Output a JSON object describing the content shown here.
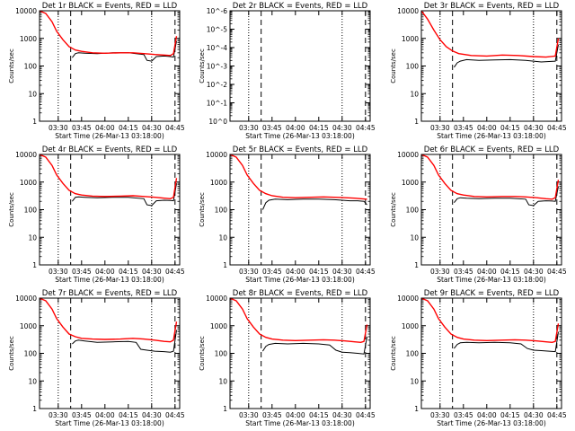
{
  "colors": {
    "events": "#000000",
    "lld": "#ff0000",
    "background": "#ffffff"
  },
  "chart_data": [
    {
      "type": "line",
      "title": "Det 1r BLACK = Events, RED = LLD",
      "xlabel": "Start Time (26-Mar-13 03:18:00)",
      "ylabel": "Counts/sec",
      "y_scale": "log",
      "ylim": [
        1,
        10000
      ],
      "y_ticks": [
        "1",
        "10",
        "100",
        "1000",
        "10000"
      ],
      "x_ticks": [
        "03:30",
        "03:45",
        "04:00",
        "04:15",
        "04:30",
        "04:45"
      ],
      "dotted_lines": [
        "03:30",
        "04:30"
      ],
      "dashed_lines": [
        "03:38",
        "04:45"
      ],
      "legend": "none",
      "series": [
        {
          "name": "Events",
          "color": "#000000",
          "x": [
            "03:39",
            "03:41",
            "03:43",
            "03:47",
            "03:55",
            "04:05",
            "04:15",
            "04:25",
            "04:27",
            "04:30",
            "04:33",
            "04:38",
            "04:42",
            "04:44",
            "04:46"
          ],
          "y": [
            200,
            280,
            300,
            290,
            280,
            300,
            300,
            260,
            160,
            150,
            220,
            230,
            220,
            210,
            800
          ]
        },
        {
          "name": "LLD",
          "color": "#ff0000",
          "x": [
            "03:18",
            "03:22",
            "03:26",
            "03:29",
            "03:33",
            "03:37",
            "03:41",
            "03:45",
            "03:52",
            "04:00",
            "04:10",
            "04:18",
            "04:25",
            "04:32",
            "04:38",
            "04:42",
            "04:44",
            "04:46"
          ],
          "y": [
            10000,
            8000,
            4000,
            1800,
            900,
            500,
            380,
            340,
            300,
            290,
            300,
            300,
            280,
            260,
            250,
            240,
            280,
            1200
          ]
        }
      ]
    },
    {
      "type": "line",
      "title": "Det 2r BLACK = Events, RED = LLD",
      "xlabel": "Start Time (26-Mar-13 03:18:00)",
      "ylabel": "Counts/sec",
      "y_scale": "log",
      "ylim": [
        1,
        1e-06
      ],
      "y_ticks": [
        "10^0",
        "10^-1",
        "10^-2",
        "10^-3",
        "10^-4",
        "10^-5",
        "10^-6"
      ],
      "x_ticks": [
        "03:30",
        "03:45",
        "04:00",
        "04:15",
        "04:30",
        "04:45"
      ],
      "dotted_lines": [
        "03:30",
        "04:30"
      ],
      "dashed_lines": [
        "03:38",
        "04:45"
      ],
      "legend": "none",
      "series": [
        {
          "name": "Events",
          "color": "#000000",
          "x": [],
          "y": []
        },
        {
          "name": "LLD",
          "color": "#ff0000",
          "x": [],
          "y": []
        }
      ]
    },
    {
      "type": "line",
      "title": "Det 3r BLACK = Events, RED = LLD",
      "xlabel": "Start Time (26-Mar-13 03:18:00)",
      "ylabel": "Counts/sec",
      "y_scale": "log",
      "ylim": [
        1,
        10000
      ],
      "y_ticks": [
        "1",
        "10",
        "100",
        "1000",
        "10000"
      ],
      "x_ticks": [
        "03:30",
        "03:45",
        "04:00",
        "04:15",
        "04:30",
        "04:45"
      ],
      "dotted_lines": [
        "03:30",
        "04:30"
      ],
      "dashed_lines": [
        "03:38",
        "04:45"
      ],
      "legend": "none",
      "series": [
        {
          "name": "Events",
          "color": "#000000",
          "x": [
            "03:39",
            "03:41",
            "03:43",
            "03:47",
            "03:55",
            "04:05",
            "04:15",
            "04:25",
            "04:30",
            "04:35",
            "04:40",
            "04:44",
            "04:46"
          ],
          "y": [
            90,
            130,
            150,
            170,
            160,
            165,
            170,
            160,
            150,
            140,
            145,
            150,
            600
          ]
        },
        {
          "name": "LLD",
          "color": "#ff0000",
          "x": [
            "03:18",
            "03:22",
            "03:26",
            "03:30",
            "03:34",
            "03:38",
            "03:42",
            "03:50",
            "04:00",
            "04:10",
            "04:20",
            "04:30",
            "04:38",
            "04:44",
            "04:46"
          ],
          "y": [
            10000,
            5000,
            2000,
            900,
            500,
            350,
            280,
            240,
            230,
            250,
            240,
            220,
            210,
            230,
            1000
          ]
        }
      ]
    },
    {
      "type": "line",
      "title": "Det 4r BLACK = Events, RED = LLD",
      "xlabel": "Start Time (26-Mar-13 03:18:00)",
      "ylabel": "Counts/sec",
      "y_scale": "log",
      "ylim": [
        1,
        10000
      ],
      "y_ticks": [
        "1",
        "10",
        "100",
        "1000",
        "10000"
      ],
      "x_ticks": [
        "03:30",
        "03:45",
        "04:00",
        "04:15",
        "04:30",
        "04:45"
      ],
      "dotted_lines": [
        "03:30",
        "04:30"
      ],
      "dashed_lines": [
        "03:38",
        "04:45"
      ],
      "legend": "none",
      "series": [
        {
          "name": "Events",
          "color": "#000000",
          "x": [
            "03:39",
            "03:41",
            "03:43",
            "03:47",
            "03:55",
            "04:05",
            "04:15",
            "04:25",
            "04:27",
            "04:30",
            "04:33",
            "04:38",
            "04:42",
            "04:44",
            "04:46"
          ],
          "y": [
            200,
            280,
            290,
            280,
            270,
            280,
            280,
            250,
            150,
            140,
            210,
            220,
            215,
            210,
            900
          ]
        },
        {
          "name": "LLD",
          "color": "#ff0000",
          "x": [
            "03:18",
            "03:22",
            "03:26",
            "03:29",
            "03:33",
            "03:37",
            "03:41",
            "03:45",
            "03:52",
            "04:00",
            "04:10",
            "04:18",
            "04:25",
            "04:32",
            "04:38",
            "04:42",
            "04:44",
            "04:46"
          ],
          "y": [
            10000,
            8000,
            4000,
            1800,
            900,
            500,
            380,
            340,
            310,
            300,
            310,
            320,
            300,
            280,
            260,
            250,
            280,
            1400
          ]
        }
      ]
    },
    {
      "type": "line",
      "title": "Det 5r BLACK = Events, RED = LLD",
      "xlabel": "Start Time (26-Mar-13 03:18:00)",
      "ylabel": "Counts/sec",
      "y_scale": "log",
      "ylim": [
        1,
        10000
      ],
      "y_ticks": [
        "1",
        "10",
        "100",
        "1000",
        "10000"
      ],
      "x_ticks": [
        "03:30",
        "03:45",
        "04:00",
        "04:15",
        "04:30",
        "04:45"
      ],
      "dotted_lines": [
        "03:30",
        "04:30"
      ],
      "dashed_lines": [
        "03:38",
        "04:45"
      ],
      "legend": "none",
      "series": [
        {
          "name": "Events",
          "color": "#000000",
          "x": [
            "03:39",
            "03:41",
            "03:43",
            "03:47",
            "03:55",
            "04:05",
            "04:15",
            "04:25",
            "04:30",
            "04:35",
            "04:40",
            "04:44",
            "04:46"
          ],
          "y": [
            100,
            180,
            220,
            240,
            230,
            240,
            240,
            230,
            220,
            210,
            210,
            200,
            150
          ]
        },
        {
          "name": "LLD",
          "color": "#ff0000",
          "x": [
            "03:18",
            "03:22",
            "03:26",
            "03:29",
            "03:33",
            "03:37",
            "03:41",
            "03:45",
            "03:52",
            "04:00",
            "04:10",
            "04:18",
            "04:25",
            "04:32",
            "04:38",
            "04:42",
            "04:46"
          ],
          "y": [
            10000,
            8000,
            4000,
            1800,
            900,
            500,
            380,
            320,
            280,
            270,
            280,
            290,
            280,
            270,
            260,
            250,
            240
          ]
        }
      ]
    },
    {
      "type": "line",
      "title": "Det 6r BLACK = Events, RED = LLD",
      "xlabel": "Start Time (26-Mar-13 03:18:00)",
      "ylabel": "Counts/sec",
      "y_scale": "log",
      "ylim": [
        1,
        10000
      ],
      "y_ticks": [
        "1",
        "10",
        "100",
        "1000",
        "10000"
      ],
      "x_ticks": [
        "03:30",
        "03:45",
        "04:00",
        "04:15",
        "04:30",
        "04:45"
      ],
      "dotted_lines": [
        "03:30",
        "04:30"
      ],
      "dashed_lines": [
        "03:38",
        "04:45"
      ],
      "legend": "none",
      "series": [
        {
          "name": "Events",
          "color": "#000000",
          "x": [
            "03:39",
            "03:41",
            "03:43",
            "03:47",
            "03:55",
            "04:05",
            "04:15",
            "04:25",
            "04:27",
            "04:30",
            "04:33",
            "04:38",
            "04:42",
            "04:44",
            "04:46"
          ],
          "y": [
            180,
            250,
            270,
            260,
            250,
            260,
            260,
            240,
            150,
            140,
            200,
            210,
            205,
            200,
            700
          ]
        },
        {
          "name": "LLD",
          "color": "#ff0000",
          "x": [
            "03:18",
            "03:22",
            "03:26",
            "03:29",
            "03:33",
            "03:37",
            "03:41",
            "03:45",
            "03:52",
            "04:00",
            "04:10",
            "04:18",
            "04:25",
            "04:32",
            "04:38",
            "04:42",
            "04:44",
            "04:46"
          ],
          "y": [
            10000,
            8000,
            4000,
            1800,
            900,
            500,
            380,
            340,
            300,
            290,
            300,
            300,
            290,
            270,
            250,
            240,
            270,
            1200
          ]
        }
      ]
    },
    {
      "type": "line",
      "title": "Det 7r BLACK = Events, RED = LLD",
      "xlabel": "Start Time (26-Mar-13 03:18:00)",
      "ylabel": "Counts/sec",
      "y_scale": "log",
      "ylim": [
        1,
        10000
      ],
      "y_ticks": [
        "1",
        "10",
        "100",
        "1000",
        "10000"
      ],
      "x_ticks": [
        "03:30",
        "03:45",
        "04:00",
        "04:15",
        "04:30",
        "04:45"
      ],
      "dotted_lines": [
        "03:30",
        "04:30"
      ],
      "dashed_lines": [
        "03:38",
        "04:45"
      ],
      "legend": "none",
      "series": [
        {
          "name": "Events",
          "color": "#000000",
          "x": [
            "03:39",
            "03:41",
            "03:43",
            "03:47",
            "03:55",
            "04:05",
            "04:15",
            "04:20",
            "04:23",
            "04:27",
            "04:32",
            "04:38",
            "04:42",
            "04:44",
            "04:46"
          ],
          "y": [
            220,
            280,
            300,
            280,
            250,
            260,
            270,
            250,
            140,
            130,
            120,
            115,
            110,
            120,
            700
          ]
        },
        {
          "name": "LLD",
          "color": "#ff0000",
          "x": [
            "03:18",
            "03:22",
            "03:26",
            "03:29",
            "03:33",
            "03:37",
            "03:41",
            "03:45",
            "03:52",
            "04:00",
            "04:10",
            "04:18",
            "04:25",
            "04:32",
            "04:38",
            "04:42",
            "04:44",
            "04:46"
          ],
          "y": [
            10000,
            8000,
            4000,
            1800,
            900,
            500,
            400,
            350,
            330,
            320,
            330,
            350,
            330,
            300,
            270,
            260,
            300,
            1400
          ]
        }
      ]
    },
    {
      "type": "line",
      "title": "Det 8r BLACK = Events, RED = LLD",
      "xlabel": "Start Time (26-Mar-13 03:18:00)",
      "ylabel": "Counts/sec",
      "y_scale": "log",
      "ylim": [
        1,
        10000
      ],
      "y_ticks": [
        "1",
        "10",
        "100",
        "1000",
        "10000"
      ],
      "x_ticks": [
        "03:30",
        "03:45",
        "04:00",
        "04:15",
        "04:30",
        "04:45"
      ],
      "dotted_lines": [
        "03:30",
        "04:30"
      ],
      "dashed_lines": [
        "03:38",
        "04:45"
      ],
      "legend": "none",
      "series": [
        {
          "name": "Events",
          "color": "#000000",
          "x": [
            "03:39",
            "03:41",
            "03:43",
            "03:47",
            "03:55",
            "04:05",
            "04:15",
            "04:22",
            "04:26",
            "04:30",
            "04:35",
            "04:40",
            "04:44",
            "04:46"
          ],
          "y": [
            120,
            180,
            210,
            230,
            220,
            230,
            220,
            200,
            130,
            110,
            105,
            100,
            95,
            400
          ]
        },
        {
          "name": "LLD",
          "color": "#ff0000",
          "x": [
            "03:18",
            "03:22",
            "03:26",
            "03:29",
            "03:33",
            "03:37",
            "03:41",
            "03:45",
            "03:52",
            "04:00",
            "04:10",
            "04:18",
            "04:25",
            "04:32",
            "04:38",
            "04:42",
            "04:44",
            "04:46"
          ],
          "y": [
            10000,
            8000,
            4000,
            1800,
            900,
            500,
            380,
            330,
            300,
            290,
            300,
            310,
            300,
            280,
            260,
            250,
            270,
            1100
          ]
        }
      ]
    },
    {
      "type": "line",
      "title": "Det 9r BLACK = Events, RED = LLD",
      "xlabel": "Start Time (26-Mar-13 03:18:00)",
      "ylabel": "Counts/sec",
      "y_scale": "log",
      "ylim": [
        1,
        10000
      ],
      "y_ticks": [
        "1",
        "10",
        "100",
        "1000",
        "10000"
      ],
      "x_ticks": [
        "03:30",
        "03:45",
        "04:00",
        "04:15",
        "04:30",
        "04:45"
      ],
      "dotted_lines": [
        "03:30",
        "04:30"
      ],
      "dashed_lines": [
        "03:38",
        "04:45"
      ],
      "legend": "none",
      "series": [
        {
          "name": "Events",
          "color": "#000000",
          "x": [
            "03:39",
            "03:41",
            "03:43",
            "03:47",
            "03:55",
            "04:05",
            "04:15",
            "04:22",
            "04:26",
            "04:30",
            "04:35",
            "04:40",
            "04:44",
            "04:46"
          ],
          "y": [
            150,
            210,
            240,
            250,
            240,
            250,
            240,
            220,
            150,
            130,
            125,
            120,
            115,
            600
          ]
        },
        {
          "name": "LLD",
          "color": "#ff0000",
          "x": [
            "03:18",
            "03:22",
            "03:26",
            "03:29",
            "03:33",
            "03:37",
            "03:41",
            "03:45",
            "03:52",
            "04:00",
            "04:10",
            "04:18",
            "04:25",
            "04:32",
            "04:38",
            "04:42",
            "04:44",
            "04:46"
          ],
          "y": [
            10000,
            8000,
            4000,
            1800,
            900,
            500,
            380,
            330,
            300,
            290,
            300,
            310,
            300,
            280,
            260,
            250,
            270,
            1200
          ]
        }
      ]
    }
  ]
}
